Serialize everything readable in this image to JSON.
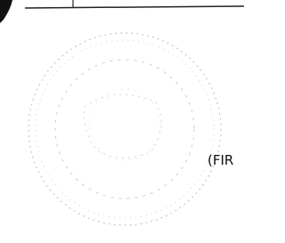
{
  "text": "(FIR"
}
